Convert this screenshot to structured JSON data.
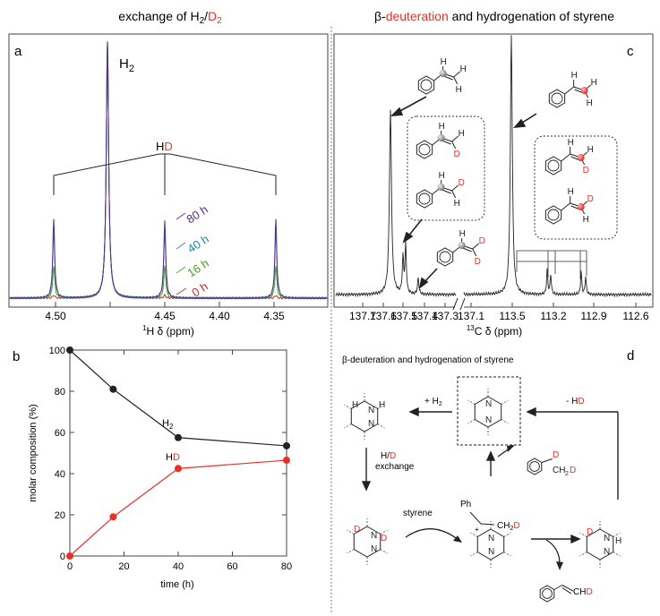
{
  "titles": {
    "left_prefix": "exchange of H",
    "left_sub1": "2",
    "left_slash": "/",
    "left_d": "D",
    "left_sub2": "2",
    "right_beta": "β-",
    "right_red": "deuteration",
    "right_rest": " and hydrogenation of styrene"
  },
  "panel_letters": [
    "a",
    "b",
    "c",
    "d"
  ],
  "colors": {
    "red": "#e8302a",
    "black": "#222222",
    "gray": "#555555",
    "trace_80h": "#5b2c8f",
    "trace_40h": "#1b8c9c",
    "trace_16h": "#4aa02c",
    "trace_0h": "#b5312a"
  },
  "panel_a": {
    "h2_main": "H",
    "h2_sub": "2",
    "hd_h": "H",
    "hd_d": "D",
    "time_labels": [
      "80 h",
      "40 h",
      "16 h",
      "0 h"
    ],
    "ticks": [
      "4.50",
      "4.45",
      "4.40",
      "4.35"
    ],
    "xlabel_sup": "1",
    "xlabel": "H δ (ppm)"
  },
  "chart_data": {
    "type": "line",
    "title": "",
    "xlabel": "time (h)",
    "ylabel": "molar composition (%)",
    "xlim": [
      0,
      80
    ],
    "ylim": [
      0,
      100
    ],
    "xticks": [
      "0",
      "20",
      "40",
      "60",
      "80"
    ],
    "yticks": [
      "0",
      "20",
      "40",
      "60",
      "80",
      "100"
    ],
    "series": [
      {
        "name": "H2",
        "label_main": "H",
        "label_sub": "2",
        "color": "#222222",
        "x": [
          0,
          16,
          40,
          80
        ],
        "y": [
          100,
          81,
          57.5,
          53.5
        ]
      },
      {
        "name": "HD",
        "label_main": "H",
        "label_red": "D",
        "color": "#e8302a",
        "x": [
          0,
          16,
          40,
          80
        ],
        "y": [
          0,
          19,
          42.5,
          46.5
        ]
      }
    ]
  },
  "panel_c": {
    "ticks_left": [
      "137.7",
      "137.6",
      "137.5",
      "137.4",
      "137.3",
      "137.1"
    ],
    "ticks_right": [
      "113.5",
      "113.2",
      "112.9",
      "112.6"
    ],
    "xlabel_sup": "13",
    "xlabel": "C δ (ppm)",
    "atom_h": "H",
    "atom_d": "D"
  },
  "panel_d": {
    "subtitle": "β-deuteration and hydrogenation of styrene",
    "plus_h2": "+ H",
    "plus_h2_sub": "2",
    "minus_prefix": "- H",
    "minus_d": "D",
    "exchange_h": "H/",
    "exchange_d": "D",
    "exchange_word": "exchange",
    "styrene": "styrene",
    "ph": "Ph",
    "ch2d_main": "CH",
    "ch2d_sub": "2",
    "ch2d_d": "D",
    "chd_main": "CH",
    "chd_d": "D",
    "n": "N",
    "h": "H",
    "d": "D",
    "plus_charge": "+"
  }
}
